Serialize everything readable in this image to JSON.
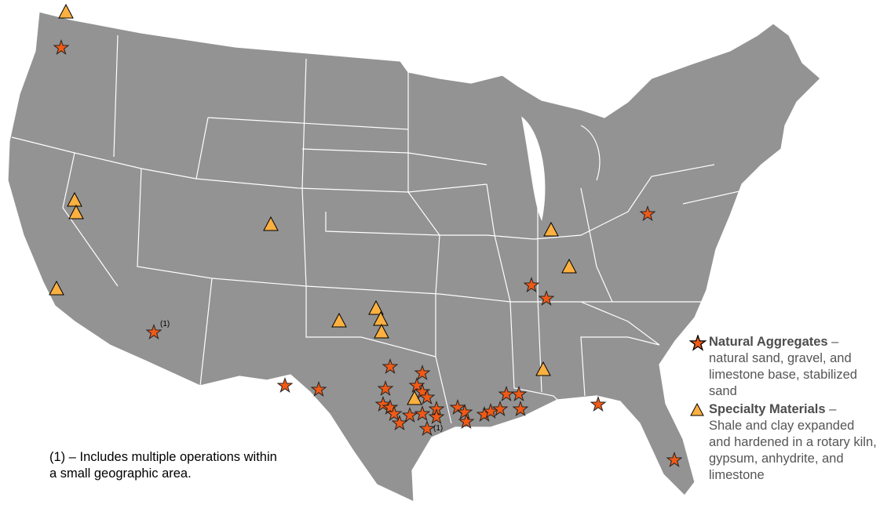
{
  "colors": {
    "land": "#939393",
    "borders": "#ffffff",
    "natural_aggregates": "#f05a16",
    "specialty_materials": "#fbb040"
  },
  "legend": {
    "items": [
      {
        "icon": "star-icon",
        "title": "Natural Aggregates",
        "dash": " –",
        "description": "natural sand, gravel, and limestone base, stabilized sand"
      },
      {
        "icon": "triangle-icon",
        "title": "Specialty Materials",
        "dash": " –",
        "description": "Shale and clay expanded and hardened in a rotary kiln, gypsum, anhydrite, and limestone"
      }
    ]
  },
  "footnote": "(1) – Includes multiple operations within a small geographic area.",
  "marker_note": "(1)"
}
